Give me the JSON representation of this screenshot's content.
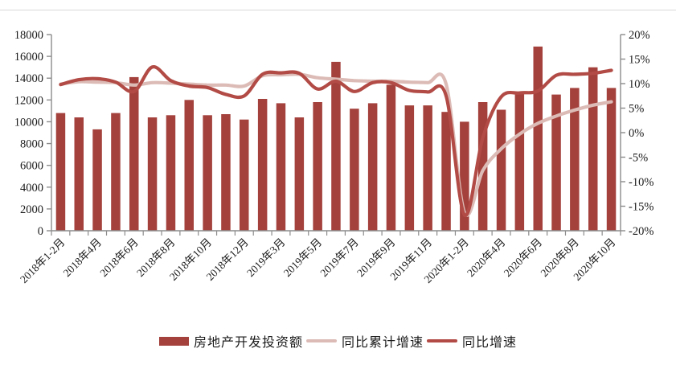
{
  "chart_data": {
    "type": "bar",
    "subtype": "bar-line-combo",
    "categories": [
      "2018年1-2月",
      "2018年3月",
      "2018年4月",
      "2018年5月",
      "2018年6月",
      "2018年7月",
      "2018年8月",
      "2018年9月",
      "2018年10月",
      "2018年11月",
      "2018年12月",
      "2019年1-2月",
      "2019年3月",
      "2019年4月",
      "2019年5月",
      "2019年6月",
      "2019年7月",
      "2019年8月",
      "2019年9月",
      "2019年10月",
      "2019年11月",
      "2019年12月",
      "2020年1-2月",
      "2020年3月",
      "2020年4月",
      "2020年5月",
      "2020年6月",
      "2020年7月",
      "2020年8月",
      "2020年9月",
      "2020年10月"
    ],
    "x_label_every": 2,
    "series": [
      {
        "name": "房地产开发投资额",
        "type": "bar",
        "axis": "left",
        "color": "#A4413C",
        "values": [
          10800,
          10400,
          9300,
          10800,
          14100,
          10400,
          10600,
          12000,
          10600,
          10700,
          10200,
          12100,
          11700,
          10400,
          11800,
          15500,
          11200,
          11700,
          13400,
          11500,
          11500,
          10900,
          10000,
          11800,
          11100,
          12600,
          16900,
          12500,
          13100,
          15000,
          13100
        ]
      },
      {
        "name": "同比累计增速",
        "type": "line",
        "axis": "right",
        "color": "#DCBBB6",
        "values": [
          9.9,
          10.4,
          10.3,
          10.2,
          9.7,
          10.2,
          10.1,
          9.9,
          9.7,
          9.7,
          9.5,
          11.6,
          11.8,
          11.9,
          11.2,
          10.9,
          10.6,
          10.5,
          10.5,
          10.3,
          10.2,
          9.9,
          -16.3,
          -7.7,
          -3.3,
          -0.3,
          1.9,
          3.4,
          4.6,
          5.6,
          6.3
        ]
      },
      {
        "name": "同比增速",
        "type": "line",
        "axis": "right",
        "color": "#B24B45",
        "values": [
          9.8,
          10.8,
          11.0,
          10.3,
          8.4,
          13.4,
          10.6,
          9.5,
          9.2,
          7.8,
          7.5,
          11.9,
          12.2,
          12.1,
          8.9,
          10.5,
          8.4,
          10.2,
          10.2,
          8.6,
          8.3,
          7.5,
          -16.8,
          -1.0,
          7.3,
          8.1,
          8.5,
          11.7,
          11.9,
          12.1,
          12.7
        ]
      }
    ],
    "left_axis": {
      "min": 0,
      "max": 18000,
      "step": 2000,
      "tick_labels": [
        "18000",
        "16000",
        "14000",
        "12000",
        "10000",
        "8000",
        "6000",
        "4000",
        "2000",
        "0"
      ]
    },
    "right_axis": {
      "min": -20,
      "max": 20,
      "step": 5,
      "suffix": "%",
      "tick_labels": [
        "20%",
        "15%",
        "10%",
        "5%",
        "0%",
        "-5%",
        "-10%",
        "-15%",
        "-20%"
      ]
    },
    "grid": "off",
    "legend_position": "bottom-center",
    "style": {
      "axis_color": "#8C8C8C",
      "text_color": "#1b1b1b",
      "background": "#ffffff"
    }
  },
  "legend": {
    "items": [
      {
        "label": "房地产开发投资额",
        "swatch": "bar",
        "color": "#A4413C"
      },
      {
        "label": "同比累计增速",
        "swatch": "line",
        "color": "#DCBBB6"
      },
      {
        "label": "同比增速",
        "swatch": "line",
        "color": "#B24B45"
      }
    ]
  }
}
